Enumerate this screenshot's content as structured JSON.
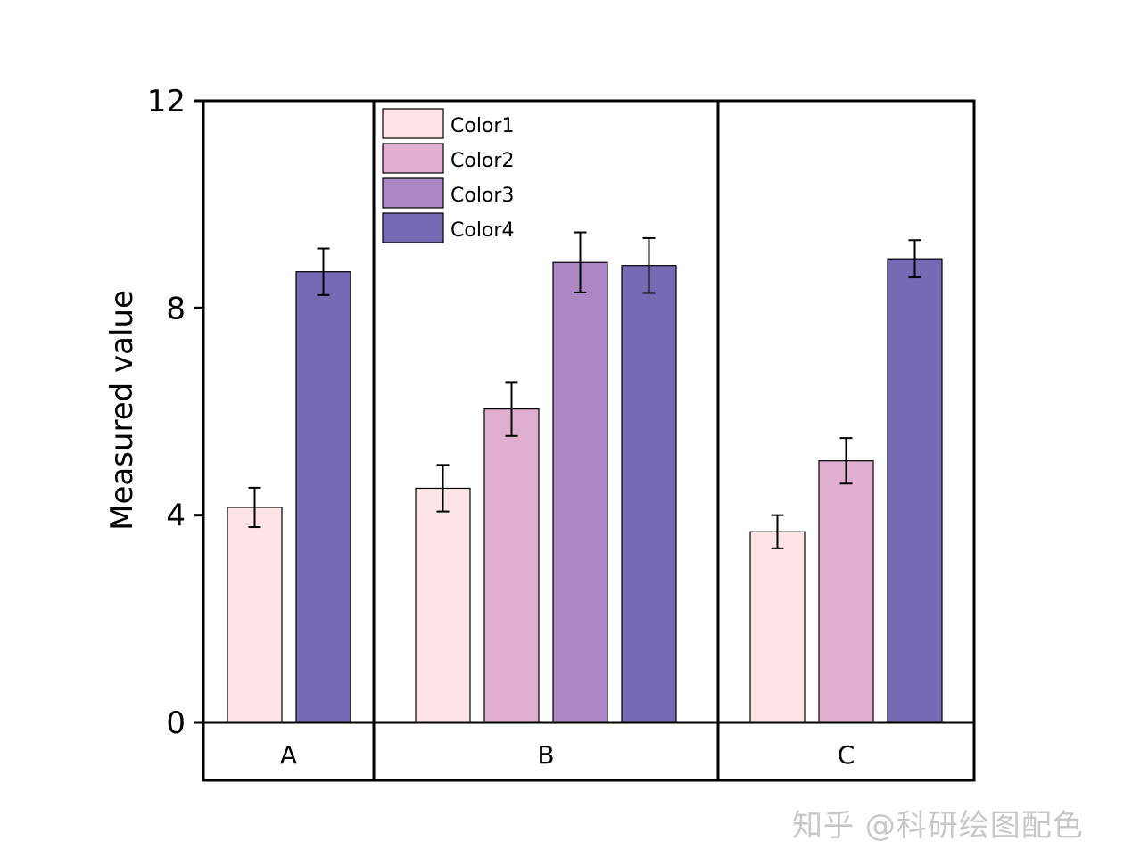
{
  "chart_data": {
    "type": "bar",
    "ylabel": "Measured value",
    "ylim": [
      0,
      12
    ],
    "yticks": [
      0,
      4,
      8,
      12
    ],
    "grid": false,
    "legend_position": "top-left of group B",
    "series": [
      {
        "name": "Color1",
        "color": "#FDE4E6"
      },
      {
        "name": "Color2",
        "color": "#E0AFD0"
      },
      {
        "name": "Color3",
        "color": "#AC87C4"
      },
      {
        "name": "Color4",
        "color": "#756BB5"
      }
    ],
    "groups": [
      {
        "category": "A",
        "bars": [
          {
            "series": "Color1",
            "value": 4.15,
            "error": 0.38
          },
          {
            "series": "Color4",
            "value": 8.7,
            "error": 0.45
          }
        ]
      },
      {
        "category": "B",
        "bars": [
          {
            "series": "Color1",
            "value": 4.52,
            "error": 0.45
          },
          {
            "series": "Color2",
            "value": 6.05,
            "error": 0.52
          },
          {
            "series": "Color3",
            "value": 8.88,
            "error": 0.58
          },
          {
            "series": "Color4",
            "value": 8.82,
            "error": 0.53
          }
        ]
      },
      {
        "category": "C",
        "bars": [
          {
            "series": "Color1",
            "value": 3.68,
            "error": 0.32
          },
          {
            "series": "Color2",
            "value": 5.05,
            "error": 0.44
          },
          {
            "series": "Color4",
            "value": 8.95,
            "error": 0.36
          }
        ]
      }
    ]
  },
  "watermark": "知乎 @科研绘图配色"
}
